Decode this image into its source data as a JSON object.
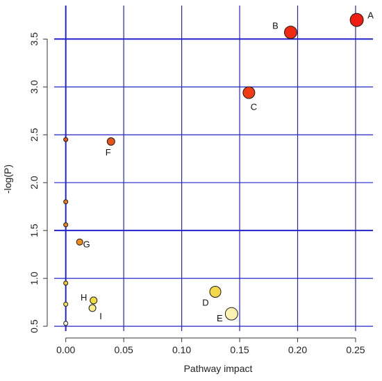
{
  "chart_data": {
    "type": "scatter",
    "title": "",
    "xlabel": "Pathway impact",
    "ylabel": "-log(P)",
    "xlim": [
      -0.01,
      0.265
    ],
    "ylim": [
      0.45,
      3.85
    ],
    "xticks": [
      0.0,
      0.05,
      0.1,
      0.15,
      0.2,
      0.25
    ],
    "xtick_labels": [
      "0.00",
      "0.05",
      "0.10",
      "0.15",
      "0.20",
      "0.25"
    ],
    "yticks": [
      0.5,
      1.0,
      1.5,
      2.0,
      2.5,
      3.0,
      3.5
    ],
    "ytick_labels": [
      "0.5",
      "1.0",
      "1.5",
      "2.0",
      "2.5",
      "3.0",
      "3.5"
    ],
    "grid": true,
    "points": [
      {
        "label": "A",
        "x": 0.251,
        "y": 3.7,
        "size": 9.5,
        "color": "#ee1c12",
        "label_dx": 20,
        "label_dy": -2
      },
      {
        "label": "B",
        "x": 0.194,
        "y": 3.57,
        "size": 9.0,
        "color": "#ee2a14",
        "label_dx": -22,
        "label_dy": -5
      },
      {
        "label": "C",
        "x": 0.158,
        "y": 2.94,
        "size": 8.5,
        "color": "#ef3b16",
        "label_dx": 7,
        "label_dy": 25
      },
      {
        "label": "D",
        "x": 0.129,
        "y": 0.86,
        "size": 8.0,
        "color": "#f4d64b",
        "label_dx": -14,
        "label_dy": 20
      },
      {
        "label": "E",
        "x": 0.143,
        "y": 0.63,
        "size": 9.0,
        "color": "#fbf1b0",
        "label_dx": -17,
        "label_dy": 11
      },
      {
        "label": "F",
        "x": 0.039,
        "y": 2.43,
        "size": 5.5,
        "color": "#e7531a",
        "label_dx": -4,
        "label_dy": 20
      },
      {
        "label": "G",
        "x": 0.012,
        "y": 1.38,
        "size": 4.5,
        "color": "#ee8a1e",
        "label_dx": 10,
        "label_dy": 8
      },
      {
        "label": "H",
        "x": 0.024,
        "y": 0.77,
        "size": 5.0,
        "color": "#f3dc3f",
        "label_dx": -14,
        "label_dy": 0
      },
      {
        "label": "I",
        "x": 0.023,
        "y": 0.69,
        "size": 5.0,
        "color": "#f8ec8c",
        "label_dx": 12,
        "label_dy": 16
      },
      {
        "label": "",
        "x": 0.0,
        "y": 2.45,
        "size": 3.0,
        "color": "#e8511a",
        "label_dx": 0,
        "label_dy": 0
      },
      {
        "label": "",
        "x": 0.0,
        "y": 1.8,
        "size": 3.0,
        "color": "#ec7a1d",
        "label_dx": 0,
        "label_dy": 0
      },
      {
        "label": "",
        "x": 0.0,
        "y": 1.56,
        "size": 3.0,
        "color": "#ee851e",
        "label_dx": 0,
        "label_dy": 0
      },
      {
        "label": "",
        "x": 0.0,
        "y": 0.95,
        "size": 3.0,
        "color": "#f3c534",
        "label_dx": 0,
        "label_dy": 0
      },
      {
        "label": "",
        "x": 0.0,
        "y": 0.73,
        "size": 3.0,
        "color": "#f7e45e",
        "label_dx": 0,
        "label_dy": 0
      },
      {
        "label": "",
        "x": 0.0,
        "y": 0.53,
        "size": 3.0,
        "color": "#fdf9e6",
        "label_dx": 0,
        "label_dy": 0
      }
    ],
    "colors": {
      "grid": "#2323c8",
      "axis": "#333333",
      "point_outline": "#1a1a1a"
    }
  }
}
